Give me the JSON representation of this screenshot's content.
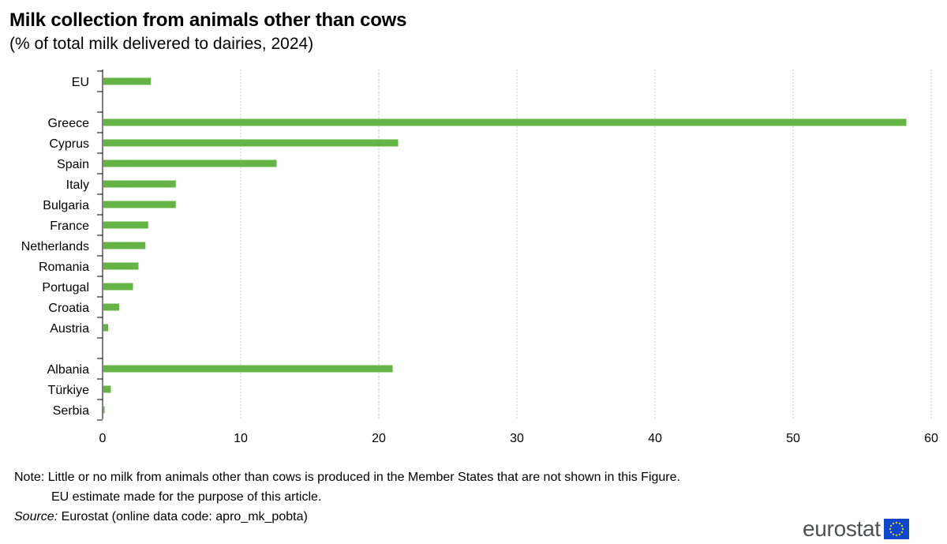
{
  "title": "Milk collection from animals other than cows",
  "subtitle": "(% of total milk delivered to dairies, 2024)",
  "notes": {
    "note_prefix": "Note:",
    "note_line1": "Little or no milk from animals other than cows is produced in the Member States that are not shown in this Figure.",
    "note_line2": "EU estimate made for the purpose of this article.",
    "source_label": "Source:",
    "source_text": "Eurostat (online data code: apro_mk_pobta)"
  },
  "logo": {
    "text": "eurostat",
    "flag_icon": "eu-flag-icon"
  },
  "colors": {
    "bar": "#64b446",
    "grid": "#c8c8c8",
    "axis": "#000000",
    "flag_blue": "#0e47cb",
    "flag_star": "#ffdd00"
  },
  "chart_data": {
    "type": "bar",
    "orientation": "horizontal",
    "categories": [
      "EU",
      "",
      "Greece",
      "Cyprus",
      "Spain",
      "Italy",
      "Bulgaria",
      "France",
      "Netherlands",
      "Romania",
      "Portugal",
      "Croatia",
      "Austria",
      "",
      "Albania",
      "Türkiye",
      "Serbia"
    ],
    "values": [
      3.5,
      null,
      58.2,
      21.4,
      12.6,
      5.3,
      5.3,
      3.3,
      3.1,
      2.6,
      2.2,
      1.2,
      0.4,
      null,
      21.0,
      0.6,
      0.1
    ],
    "x_ticks": [
      0,
      10,
      20,
      30,
      40,
      50,
      60
    ],
    "xlim": [
      0,
      60
    ],
    "title": "Milk collection from animals other than cows",
    "subtitle": "(% of total milk delivered to dairies, 2024)",
    "xlabel": "",
    "ylabel": "",
    "grid": "vertical dotted",
    "legend": "none"
  }
}
